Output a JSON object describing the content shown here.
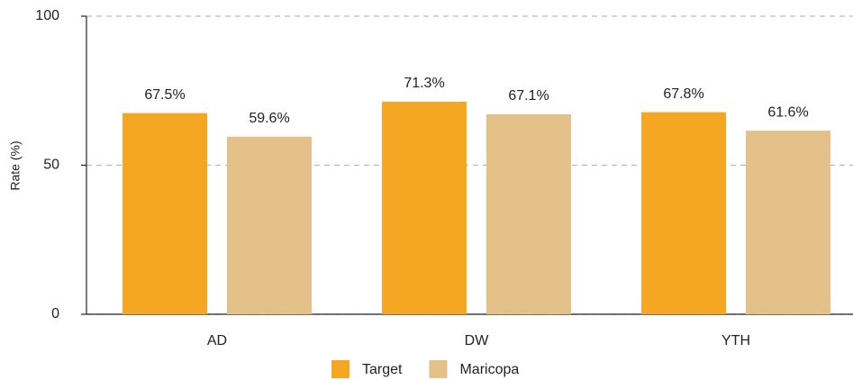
{
  "chart_data": {
    "type": "bar",
    "y_label": "Rate (%)",
    "categories": [
      "AD",
      "DW",
      "YTH"
    ],
    "series": [
      {
        "name": "Target",
        "color": "#f5a623",
        "values": [
          67.5,
          71.3,
          67.8
        ],
        "value_labels": [
          "67.5%",
          "71.3%",
          "67.8%"
        ]
      },
      {
        "name": "Maricopa",
        "color": "#e3c189",
        "values": [
          59.6,
          67.1,
          61.6
        ],
        "value_labels": [
          "59.6%",
          "67.1%",
          "61.6%"
        ]
      }
    ],
    "ylim": [
      0,
      100
    ],
    "yticks": [
      0,
      50,
      100
    ],
    "grid": true,
    "legend": "bottom"
  }
}
